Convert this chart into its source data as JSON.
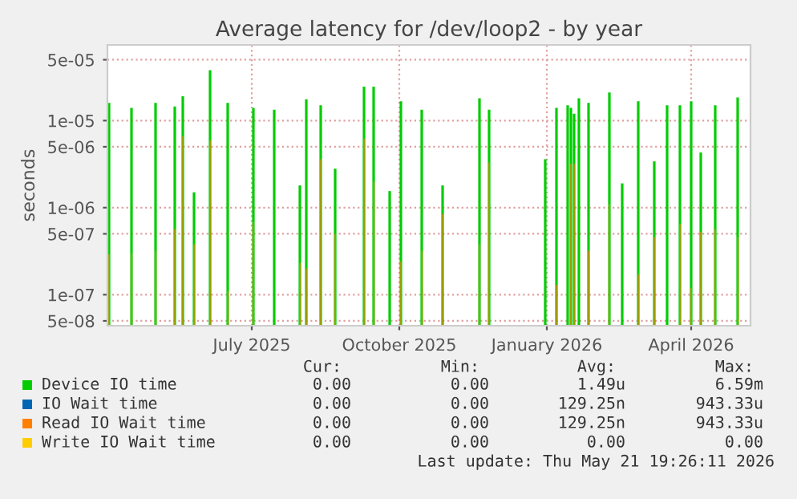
{
  "chart_data": {
    "type": "bar",
    "title": "Average latency for /dev/loop2 - by year",
    "ylabel": "seconds",
    "log": true,
    "grid": true,
    "legend": "bottom",
    "xlim": [
      "2025-04-02",
      "2026-05-08"
    ],
    "xticks": [
      {
        "value": "2025-07-01",
        "label": "July 2025"
      },
      {
        "value": "2025-10-01",
        "label": "October 2025"
      },
      {
        "value": "2026-01-01",
        "label": "January 2026"
      },
      {
        "value": "2026-04-01",
        "label": "April 2026"
      }
    ],
    "ylim": [
      4.4e-08,
      7.4e-05
    ],
    "yticks": [
      5e-08,
      1e-07,
      5e-07,
      1e-06,
      5e-06,
      1e-05,
      5e-05
    ],
    "x": [
      "2025-04-03",
      "2025-04-17",
      "2025-05-02",
      "2025-05-14",
      "2025-05-19",
      "2025-05-26",
      "2025-06-05",
      "2025-06-16",
      "2025-07-02",
      "2025-07-15",
      "2025-07-31",
      "2025-08-04",
      "2025-08-13",
      "2025-08-22",
      "2025-09-09",
      "2025-09-15",
      "2025-09-25",
      "2025-10-02",
      "2025-10-15",
      "2025-10-28",
      "2025-11-20",
      "2025-11-26",
      "2025-12-31",
      "2026-01-07",
      "2026-01-14",
      "2026-01-16",
      "2026-01-18",
      "2026-01-21",
      "2026-01-27",
      "2026-02-09",
      "2026-02-17",
      "2026-02-27",
      "2026-03-09",
      "2026-03-17",
      "2026-03-25",
      "2026-04-01",
      "2026-04-07",
      "2026-04-16",
      "2026-04-30"
    ],
    "series": [
      {
        "name": "Device IO time",
        "color": "#00cc00",
        "values": [
          1.6e-05,
          1.4e-05,
          1.6e-05,
          1.45e-05,
          1.9e-05,
          1.5e-06,
          3.8e-05,
          1.6e-05,
          1.4e-05,
          1.33e-05,
          1.8e-06,
          1.76e-05,
          1.5e-05,
          2.8e-06,
          2.45e-05,
          2.45e-05,
          1.55e-06,
          1.67e-05,
          1.33e-05,
          1.8e-06,
          1.8e-05,
          1.33e-05,
          3.6e-06,
          1.4e-05,
          1.5e-05,
          1.4e-05,
          1.2e-05,
          1.8e-05,
          1.6e-05,
          2.1e-05,
          1.9e-06,
          1.67e-05,
          3.4e-06,
          1.5e-05,
          1.5e-05,
          1.67e-05,
          4.3e-06,
          1.5e-05,
          1.84e-05
        ]
      },
      {
        "name": "IO Wait time",
        "color": "#0066b3",
        "values": [
          null,
          null,
          null,
          null,
          null,
          null,
          null,
          null,
          null,
          null,
          null,
          null,
          null,
          null,
          null,
          null,
          null,
          null,
          null,
          null,
          null,
          null,
          null,
          null,
          null,
          null,
          null,
          null,
          null,
          null,
          null,
          null,
          null,
          null,
          null,
          null,
          null,
          null,
          null
        ]
      },
      {
        "name": "Read IO Wait time",
        "color": "#ff8000",
        "values": [
          2.9e-07,
          3e-07,
          3.2e-07,
          5.7e-07,
          6.6e-06,
          3.8e-07,
          5.9e-06,
          1.1e-07,
          6.8e-07,
          null,
          2.3e-07,
          2e-07,
          3.6e-06,
          5e-07,
          6.2e-06,
          2e-06,
          null,
          2.4e-07,
          3.2e-07,
          8.5e-07,
          3.8e-07,
          3.3e-06,
          null,
          1.3e-07,
          null,
          3.2e-06,
          3.2e-06,
          null,
          3.2e-07,
          1.1e-06,
          null,
          1.7e-07,
          4.6e-07,
          null,
          6.5e-07,
          1.2e-07,
          5.3e-07,
          5.7e-07,
          4.6e-07
        ]
      },
      {
        "name": "Write IO Wait time",
        "color": "#ffcc00",
        "values": [
          null,
          null,
          null,
          null,
          null,
          null,
          null,
          null,
          null,
          null,
          null,
          null,
          null,
          null,
          null,
          null,
          null,
          null,
          null,
          null,
          null,
          null,
          null,
          null,
          null,
          null,
          null,
          null,
          null,
          null,
          null,
          null,
          null,
          null,
          null,
          null,
          null,
          null,
          null
        ]
      }
    ],
    "annotations": [
      "Cur:",
      "Min:",
      "Avg:",
      "Max:",
      "0.00",
      "0.00",
      "1.49u",
      "6.59m",
      "0.00",
      "0.00",
      "129.25n",
      "943.33u",
      "0.00",
      "0.00",
      "129.25n",
      "943.33u",
      "0.00",
      "0.00",
      "0.00",
      "0.00",
      "Last update: Thu May 21 19:26:11 2026"
    ]
  }
}
